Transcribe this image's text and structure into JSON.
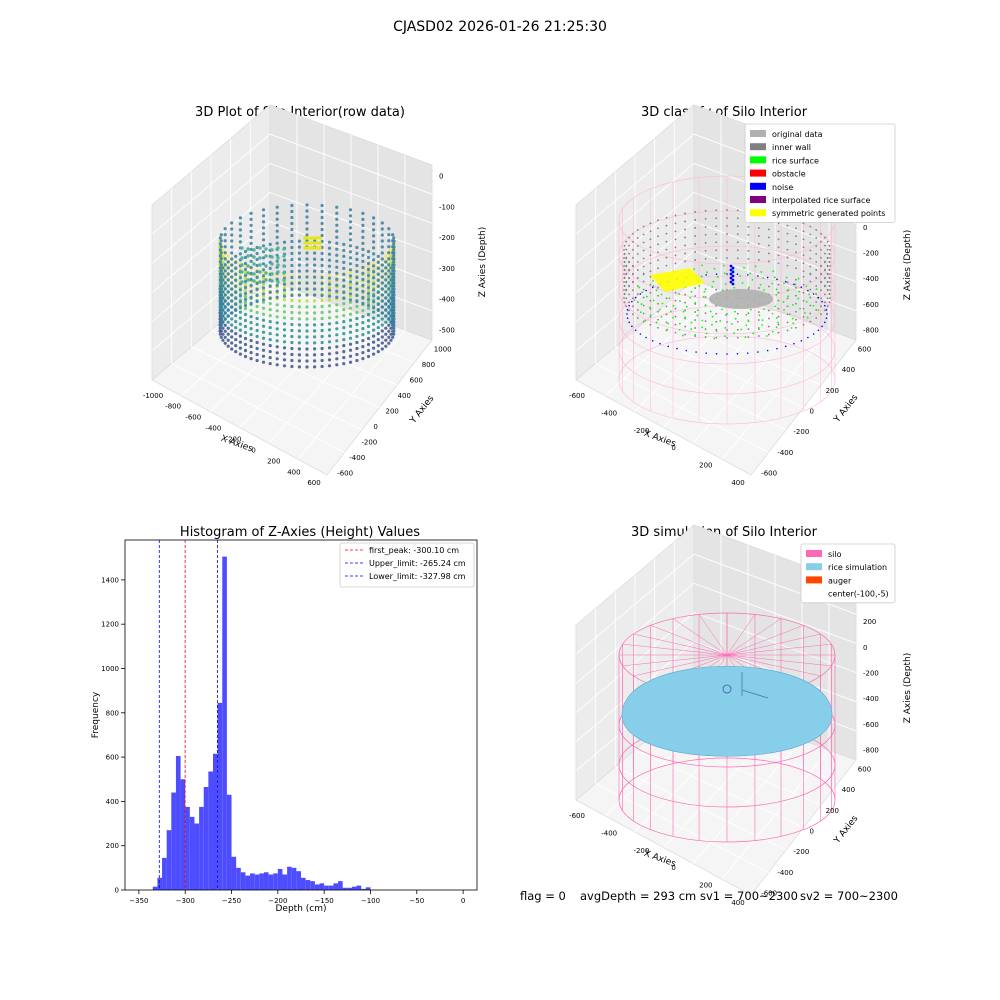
{
  "figure_title": "CJASD02 2026-01-26 21:25:30",
  "status_line": {
    "flag": "flag = 0",
    "avg_depth": "avgDepth = 293 cm",
    "sv1": "sv1 = 700~2300",
    "sv2": "sv2 = 700~2300"
  },
  "chart_data": [
    {
      "id": "raw",
      "type": "scatter",
      "subtype": "3d-scatter",
      "title": "3D Plot of Silo Interior(row data)",
      "xlabel": "X Axies",
      "ylabel": "Y Axies",
      "zlabel": "Z Axies (Depth)",
      "x_ticks": [
        "-1000",
        "-800",
        "-600",
        "-400",
        "-200",
        "0",
        "200",
        "400",
        "600"
      ],
      "y_ticks": [
        "-600",
        "-400",
        "-200",
        "0",
        "200",
        "400",
        "600",
        "800",
        "1000"
      ],
      "z_ticks": [
        "0",
        "-100",
        "-200",
        "-300",
        "-400",
        "-500"
      ],
      "colormap": "viridis"
    },
    {
      "id": "classify",
      "type": "scatter",
      "subtype": "3d-scatter",
      "title": "3D classify of Silo Interior",
      "xlabel": "X Axies",
      "ylabel": "Y Axies",
      "zlabel": "Z Axies (Depth)",
      "x_ticks": [
        "-600",
        "-400",
        "-200",
        "0",
        "200",
        "400"
      ],
      "y_ticks": [
        "-600",
        "-400",
        "-200",
        "0",
        "200",
        "400",
        "600"
      ],
      "z_ticks": [
        "400",
        "200",
        "0",
        "-200",
        "-400",
        "-600",
        "-800"
      ],
      "legend_position": "top-right",
      "legend": [
        {
          "label": "original data",
          "color": "#b0b0b0"
        },
        {
          "label": "inner wall",
          "color": "#808080"
        },
        {
          "label": "rice surface",
          "color": "#00ff00"
        },
        {
          "label": "obstacle",
          "color": "#ff0000"
        },
        {
          "label": "noise",
          "color": "#0000ff"
        },
        {
          "label": "interpolated rice surface",
          "color": "#800080"
        },
        {
          "label": "symmetric generated points",
          "color": "#ffff00"
        }
      ],
      "wire_color": "#ffb6d9"
    },
    {
      "id": "histogram",
      "type": "bar",
      "subtype": "histogram",
      "title": "Histogram of Z-Axies (Height) Values",
      "xlabel": "Depth (cm)",
      "ylabel": "Frequency",
      "xlim": [
        -365,
        15
      ],
      "ylim": [
        0,
        1580
      ],
      "x_ticks": [
        -350,
        -300,
        -250,
        -200,
        -150,
        -100,
        -50,
        0
      ],
      "y_ticks": [
        0,
        200,
        400,
        600,
        800,
        1000,
        1200,
        1400
      ],
      "bin_start": -340,
      "bin_width": 5,
      "bar_color": "#4d4dff",
      "values": [
        0,
        15,
        55,
        145,
        270,
        440,
        605,
        500,
        375,
        330,
        300,
        375,
        465,
        535,
        615,
        845,
        1505,
        430,
        150,
        100,
        80,
        65,
        75,
        70,
        75,
        80,
        70,
        75,
        95,
        70,
        105,
        100,
        85,
        55,
        45,
        40,
        25,
        30,
        20,
        20,
        30,
        40,
        10,
        10,
        15,
        20,
        5,
        12
      ],
      "lines": [
        {
          "x": -300.1,
          "label": "first_peak: -300.10 cm",
          "color": "#ff0000"
        },
        {
          "x": -265.24,
          "label": "Upper_limit: -265.24 cm",
          "color": "#0000ff"
        },
        {
          "x": -327.98,
          "label": "Lower_limit: -327.98 cm",
          "color": "#0000ff"
        }
      ],
      "legend_position": "top-right"
    },
    {
      "id": "simulation",
      "type": "scatter",
      "subtype": "3d-surface",
      "title": "3D simulation of Silo Interior",
      "xlabel": "X Axies",
      "ylabel": "Y Axies",
      "zlabel": "Z Axies (Depth)",
      "x_ticks": [
        "-600",
        "-400",
        "-200",
        "0",
        "200",
        "400"
      ],
      "y_ticks": [
        "-600",
        "-400",
        "-200",
        "0",
        "200",
        "400",
        "600"
      ],
      "z_ticks": [
        "400",
        "200",
        "0",
        "-200",
        "-400",
        "-600",
        "-800"
      ],
      "legend_position": "top-right",
      "legend": [
        {
          "label": "silo",
          "color": "#ff69b4"
        },
        {
          "label": "rice simulation",
          "color": "#87ceeb"
        },
        {
          "label": "auger",
          "color": "#ff4500"
        },
        {
          "label": "center(-100,-5)",
          "color": "none"
        }
      ]
    }
  ]
}
